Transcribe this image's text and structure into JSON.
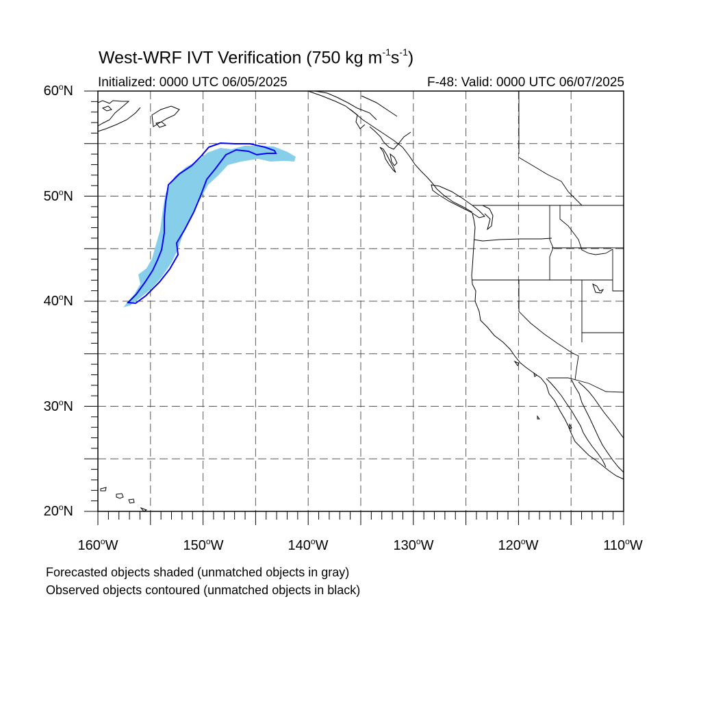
{
  "title": {
    "prefix": "West-WRF IVT Verification (750 kg m",
    "sup1": "-1",
    "mid": "s",
    "sup2": "-1",
    "suffix": ")"
  },
  "initialized": "Initialized: 0000 UTC 06/05/2025",
  "valid": "F-48: Valid: 0000 UTC 06/07/2025",
  "lat_labels": [
    {
      "num": "60",
      "hemi": "N"
    },
    {
      "num": "50",
      "hemi": "N"
    },
    {
      "num": "40",
      "hemi": "N"
    },
    {
      "num": "30",
      "hemi": "N"
    },
    {
      "num": "20",
      "hemi": "N"
    }
  ],
  "lon_labels": [
    {
      "num": "160",
      "hemi": "W"
    },
    {
      "num": "150",
      "hemi": "W"
    },
    {
      "num": "140",
      "hemi": "W"
    },
    {
      "num": "130",
      "hemi": "W"
    },
    {
      "num": "120",
      "hemi": "W"
    },
    {
      "num": "110",
      "hemi": "W"
    }
  ],
  "map": {
    "lon_range": [
      -160,
      -110
    ],
    "lat_range": [
      20,
      60
    ],
    "grid_step_deg": 5,
    "forecast_color": "#87ceeb",
    "observed_color": "#0000ff",
    "coast_color": "#000000"
  },
  "caption": {
    "line1": "Forecasted objects shaded (unmatched objects in gray)",
    "line2": "Observed objects contoured (unmatched objects in black)"
  }
}
